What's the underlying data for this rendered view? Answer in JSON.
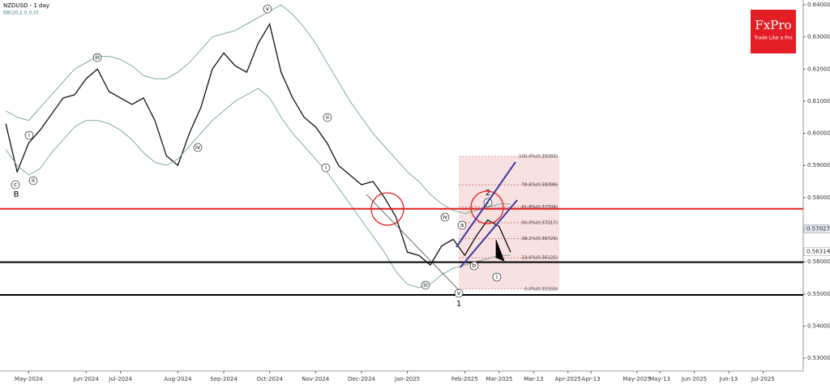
{
  "chart_data": {
    "type": "line",
    "title": "NZDUSD - 1 day",
    "subtitle": "BB(20,2.0,0,0)",
    "brand": "FxPro",
    "tagline": "Trade Like a Pro",
    "categories": [
      null,
      null,
      "May-2024",
      null,
      null,
      null,
      null,
      "Jun-2024",
      null,
      null,
      "Jul-2024",
      null,
      null,
      null,
      null,
      "Aug-2024",
      null,
      null,
      null,
      "Sep-2024",
      null,
      null,
      null,
      "Oct-2024",
      null,
      null,
      null,
      "Nov-2024",
      null,
      null,
      null,
      "Dec-2024",
      null,
      null,
      null,
      "Jan-2025",
      null,
      null,
      null,
      null,
      "Feb-2025",
      null,
      null,
      "Mar-2025",
      null,
      null,
      "Mar-13",
      null,
      null,
      "Apr-2025",
      null,
      "Apr-13",
      null,
      null,
      null,
      "May-2025",
      null,
      "May-13",
      null,
      null,
      "Jun-2025",
      null,
      null,
      "Jun-13",
      null,
      null,
      "Jul-2025",
      null,
      null,
      null
    ],
    "series": [
      {
        "name": "Close",
        "color": "#111111",
        "values": [
          0.603,
          0.588,
          0.597,
          0.601,
          0.606,
          0.611,
          0.612,
          0.617,
          0.62,
          0.613,
          0.611,
          0.609,
          0.611,
          0.604,
          0.593,
          0.59,
          0.6,
          0.608,
          0.62,
          0.625,
          0.621,
          0.619,
          0.628,
          0.634,
          0.619,
          0.611,
          0.605,
          0.602,
          0.597,
          0.59,
          0.587,
          0.584,
          0.585,
          0.58,
          0.574,
          0.563,
          0.562,
          0.559,
          0.565,
          0.567,
          0.562,
          0.568,
          0.573,
          0.571,
          0.563,
          null,
          null,
          null,
          null,
          null,
          null,
          null,
          null,
          null,
          null,
          null,
          null,
          null,
          null,
          null,
          null,
          null,
          null,
          null,
          null,
          null,
          null,
          null,
          null,
          null
        ]
      },
      {
        "name": "BB upper",
        "color": "#6fa58f",
        "values": [
          0.607,
          0.605,
          0.604,
          0.608,
          0.612,
          0.616,
          0.62,
          0.622,
          0.624,
          0.624,
          0.623,
          0.621,
          0.618,
          0.617,
          0.617,
          0.619,
          0.622,
          0.626,
          0.63,
          0.631,
          0.632,
          0.634,
          0.636,
          0.638,
          0.64,
          0.637,
          0.633,
          0.628,
          0.622,
          0.616,
          0.61,
          0.605,
          0.6,
          0.596,
          0.592,
          0.588,
          0.585,
          0.581,
          0.578,
          0.576,
          0.575,
          0.576,
          0.577,
          0.578,
          0.578,
          null,
          null,
          null,
          null,
          null,
          null,
          null,
          null,
          null,
          null,
          null,
          null,
          null,
          null,
          null,
          null,
          null,
          null,
          null,
          null,
          null,
          null,
          null,
          null,
          null
        ]
      },
      {
        "name": "BB lower",
        "color": "#6fa58f",
        "values": [
          0.595,
          0.59,
          0.587,
          0.589,
          0.594,
          0.598,
          0.602,
          0.604,
          0.604,
          0.603,
          0.601,
          0.598,
          0.594,
          0.591,
          0.59,
          0.592,
          0.596,
          0.6,
          0.604,
          0.607,
          0.61,
          0.612,
          0.614,
          0.611,
          0.605,
          0.6,
          0.596,
          0.592,
          0.588,
          0.583,
          0.578,
          0.573,
          0.568,
          0.563,
          0.557,
          0.553,
          0.552,
          0.553,
          0.556,
          0.558,
          0.559,
          0.56,
          0.561,
          0.562,
          0.562,
          null,
          null,
          null,
          null,
          null,
          null,
          null,
          null,
          null,
          null,
          null,
          null,
          null,
          null,
          null,
          null,
          null,
          null,
          null,
          null,
          null,
          null,
          null,
          null,
          null
        ]
      }
    ],
    "ylim": [
      0.526,
      0.6415
    ],
    "yticks": [
      {
        "value": 0.53,
        "label": "0.53000"
      },
      {
        "value": 0.54,
        "label": "0.54000"
      },
      {
        "value": 0.55,
        "label": "0.55000"
      },
      {
        "value": 0.56,
        "label": "0.56000"
      },
      {
        "value": 0.57,
        "label": "0.57000"
      },
      {
        "value": 0.58,
        "label": "0.58000"
      },
      {
        "value": 0.59,
        "label": "0.59000"
      },
      {
        "value": 0.6,
        "label": "0.60000"
      },
      {
        "value": 0.61,
        "label": "0.61000"
      },
      {
        "value": 0.62,
        "label": "0.62000"
      },
      {
        "value": 0.63,
        "label": "0.63000"
      },
      {
        "value": 0.64,
        "label": "0.64000"
      }
    ],
    "levels": [
      {
        "value": 0.5765,
        "color": "#e02020"
      },
      {
        "value": 0.5599,
        "color": "#000000"
      },
      {
        "value": 0.5497,
        "color": "#000000"
      }
    ],
    "fib_levels": [
      {
        "value": 0.59283,
        "label": "100.0%(0.59283)"
      },
      {
        "value": 0.58399,
        "label": "78.6%(0.58399)"
      },
      {
        "value": 0.57704,
        "label": "61.8%(0.57704)"
      },
      {
        "value": 0.57217,
        "label": "50.0%(0.57217)"
      },
      {
        "value": 0.56729,
        "label": "38.2%(0.56729)"
      },
      {
        "value": 0.56125,
        "label": "23.6%(0.56125)"
      },
      {
        "value": 0.5515,
        "label": "0.0%(0.55150)"
      }
    ],
    "price_markers": [
      {
        "value": 0.57027,
        "label": "0.57027"
      },
      {
        "value": 0.56314,
        "label": "0.56314"
      }
    ],
    "annotations": [
      "B",
      "c",
      "i",
      "ii",
      "iii",
      "iv",
      "v",
      "i",
      "ii",
      "iii",
      "iv",
      "a",
      "b",
      "c",
      "2",
      "v",
      "1",
      "i"
    ]
  }
}
